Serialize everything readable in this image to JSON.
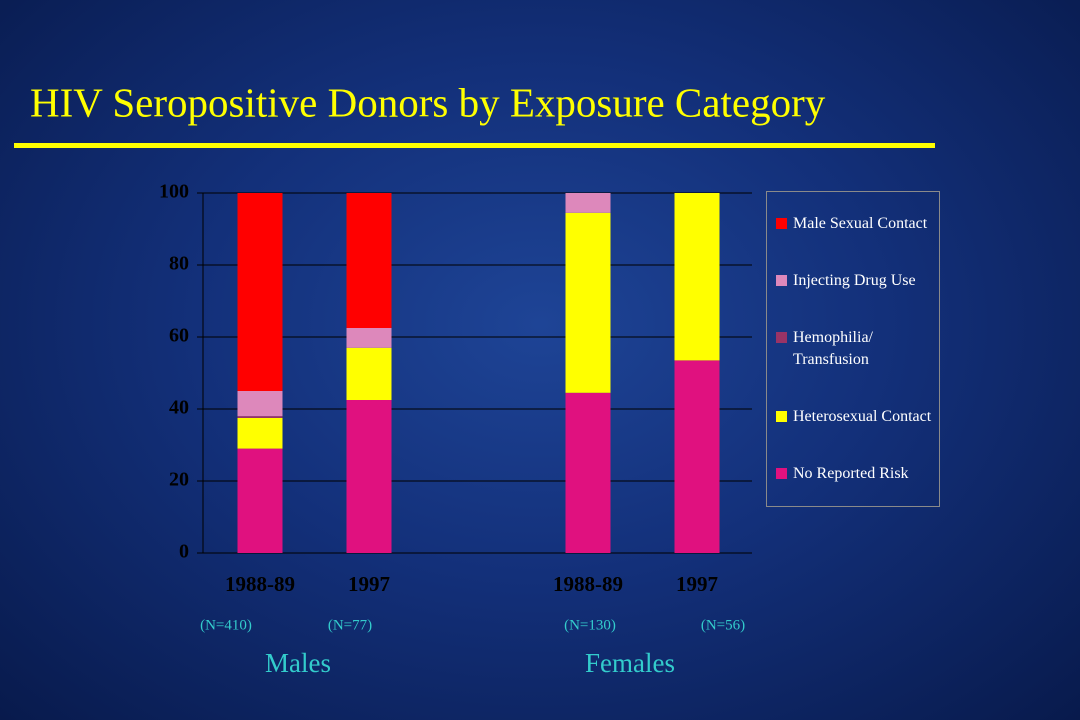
{
  "chart_data": {
    "type": "stacked_bar",
    "title": "HIV Seropositive Donors by Exposure Category",
    "categories": [
      "1988-89",
      "1997",
      "1988-89",
      "1997"
    ],
    "sample_sizes": [
      "(N=410)",
      "(N=77)",
      "(N=130)",
      "(N=56)"
    ],
    "groups": [
      "Males",
      "Females"
    ],
    "series": [
      {
        "name": "No Reported Risk",
        "color": "#e0117f",
        "values": [
          29,
          42.5,
          44.5,
          53.5
        ]
      },
      {
        "name": "Heterosexual Contact",
        "color": "#ffff00",
        "values": [
          8.5,
          14.5,
          50,
          46.5
        ]
      },
      {
        "name": "Hemophilia/ Transfusion",
        "color": "#993366",
        "values": [
          0.5,
          0,
          0,
          0
        ]
      },
      {
        "name": "Injecting Drug Use",
        "color": "#dd88bb",
        "values": [
          7,
          5.5,
          5.5,
          0
        ]
      },
      {
        "name": "Male Sexual Contact",
        "color": "#ff0000",
        "values": [
          55,
          37.5,
          0,
          0
        ]
      }
    ],
    "ylim": [
      0,
      100
    ],
    "yticks": [
      0,
      20,
      40,
      60,
      80,
      100
    ],
    "grid": true
  }
}
